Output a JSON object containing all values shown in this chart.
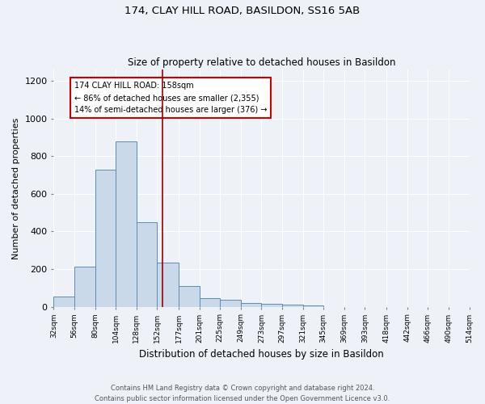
{
  "title1": "174, CLAY HILL ROAD, BASILDON, SS16 5AB",
  "title2": "Size of property relative to detached houses in Basildon",
  "xlabel": "Distribution of detached houses by size in Basildon",
  "ylabel": "Number of detached properties",
  "footer": "Contains HM Land Registry data © Crown copyright and database right 2024.\nContains public sector information licensed under the Open Government Licence v3.0.",
  "bin_edges": [
    32,
    56,
    80,
    104,
    128,
    152,
    177,
    201,
    225,
    249,
    273,
    297,
    321,
    345,
    369,
    393,
    418,
    442,
    466,
    490,
    514
  ],
  "bin_labels": [
    "32sqm",
    "56sqm",
    "80sqm",
    "104sqm",
    "128sqm",
    "152sqm",
    "177sqm",
    "201sqm",
    "225sqm",
    "249sqm",
    "273sqm",
    "297sqm",
    "321sqm",
    "345sqm",
    "369sqm",
    "393sqm",
    "418sqm",
    "442sqm",
    "466sqm",
    "490sqm",
    "514sqm"
  ],
  "counts": [
    55,
    215,
    730,
    880,
    450,
    235,
    110,
    45,
    35,
    20,
    15,
    10,
    5,
    0,
    0,
    0,
    0,
    0,
    0,
    0
  ],
  "bar_color": "#c9d9ea",
  "bar_edge_color": "#5b8db8",
  "vline_x": 158,
  "vline_color": "#9b0000",
  "annotation_text": "174 CLAY HILL ROAD: 158sqm\n← 86% of detached houses are smaller (2,355)\n14% of semi-detached houses are larger (376) →",
  "annotation_box_color": "white",
  "annotation_box_edge_color": "#cc0000",
  "ylim": [
    0,
    1260
  ],
  "background_color": "#eef2f8"
}
